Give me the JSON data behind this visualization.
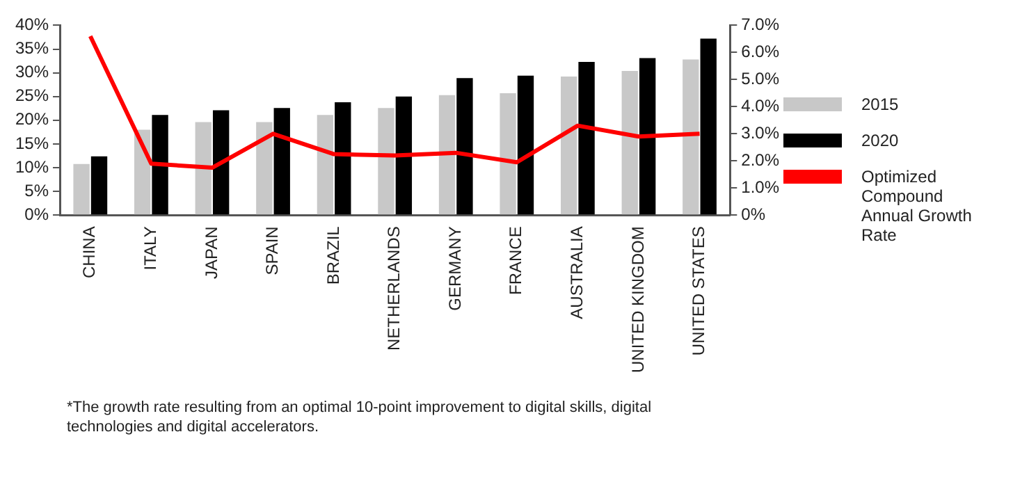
{
  "chart_data": {
    "type": "bar",
    "categories": [
      "CHINA",
      "ITALY",
      "JAPAN",
      "SPAIN",
      "BRAZIL",
      "NETHERLANDS",
      "GERMANY",
      "FRANCE",
      "AUSTRALIA",
      "UNITED KINGDOM",
      "UNITED STATES"
    ],
    "series": [
      {
        "name": "2015",
        "color": "#c8c8c8",
        "values": [
          10.8,
          18,
          19.6,
          19.6,
          21.1,
          22.6,
          25.3,
          25.7,
          29.2,
          30.4,
          32.8
        ]
      },
      {
        "name": "2020",
        "color": "#000000",
        "values": [
          12.4,
          21.1,
          22.1,
          22.6,
          23.8,
          25,
          28.9,
          29.4,
          32.3,
          33.1,
          37.2
        ]
      },
      {
        "name": "Optimized Compound Annual Growth Rate",
        "type": "line",
        "axis": "y2",
        "color": "#ff0000",
        "values": [
          6.6,
          1.9,
          1.75,
          3.0,
          2.25,
          2.2,
          2.3,
          1.95,
          3.3,
          2.9,
          3.0
        ]
      }
    ],
    "ylim": [
      0,
      40
    ],
    "yticks": [
      {
        "value": 0,
        "label": "0%"
      },
      {
        "value": 5,
        "label": "5%"
      },
      {
        "value": 10,
        "label": "10%"
      },
      {
        "value": 15,
        "label": "15%"
      },
      {
        "value": 20,
        "label": "20%"
      },
      {
        "value": 25,
        "label": "25%"
      },
      {
        "value": 30,
        "label": "30%"
      },
      {
        "value": 35,
        "label": "35%"
      },
      {
        "value": 40,
        "label": "40%"
      }
    ],
    "y2lim": [
      0,
      7
    ],
    "y2ticks": [
      {
        "value": 0,
        "label": "0%"
      },
      {
        "value": 1,
        "label": "1.0%"
      },
      {
        "value": 2,
        "label": "2.0%"
      },
      {
        "value": 3,
        "label": "3.0%"
      },
      {
        "value": 4,
        "label": "4.0%"
      },
      {
        "value": 5,
        "label": "5.0%"
      },
      {
        "value": 6,
        "label": "6.0%"
      },
      {
        "value": 7,
        "label": "7.0%"
      }
    ],
    "grid": false,
    "legend": "right",
    "marker": "none",
    "annotations": [
      "*The growth rate resulting from an optimal 10-point improvement to digital skills, digital technologies and digital accelerators."
    ]
  }
}
